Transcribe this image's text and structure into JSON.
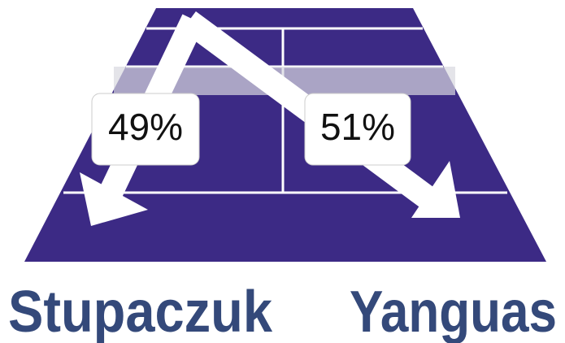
{
  "players": [
    {
      "name": "Stupaczuk",
      "share": "49%"
    },
    {
      "name": "Yanguas",
      "share": "51%"
    }
  ]
}
